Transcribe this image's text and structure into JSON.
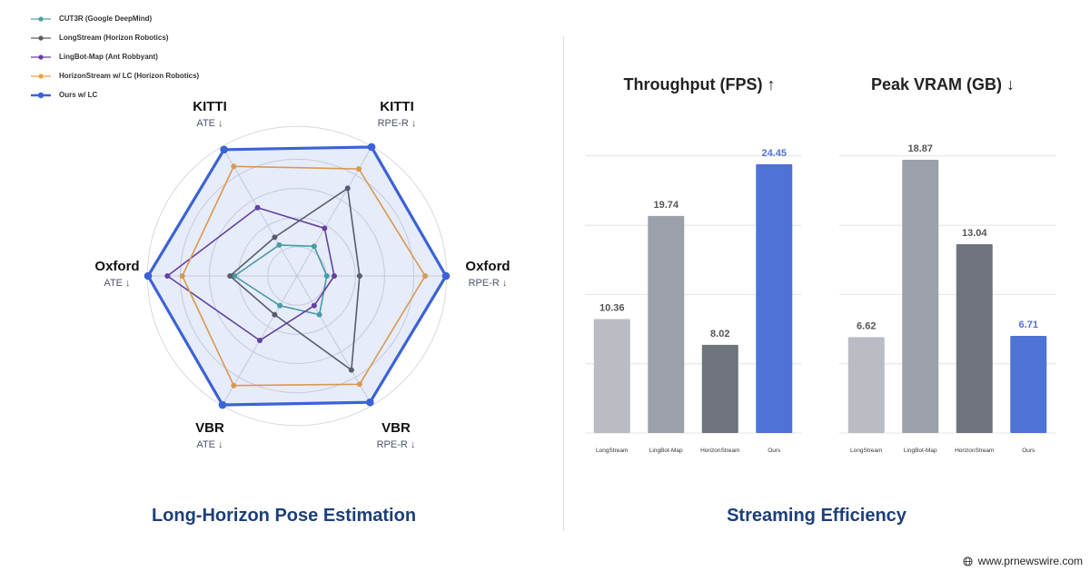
{
  "radar_title": "Long-Horizon Pose Estimation",
  "efficiency_title": "Streaming Efficiency",
  "watermark": "www.prnewswire.com",
  "colors": {
    "title_navy": "#1d3f7a",
    "grid": "#d9d9d9",
    "fill": "#e3e5f3",
    "bar_light": "#b9bcc3",
    "bar_mid": "#9ca0a8",
    "bar_dark": "#6f747c",
    "bar_ours": "#4f72d6"
  },
  "chart_data": [
    {
      "type": "radar",
      "axes": [
        {
          "name": "KITTI",
          "metric": "RPE-R ↓"
        },
        {
          "name": "Oxford",
          "metric": "RPE-R ↓"
        },
        {
          "name": "VBR",
          "metric": "RPE-R ↓"
        },
        {
          "name": "VBR",
          "metric": "ATE ↓"
        },
        {
          "name": "Oxford",
          "metric": "ATE ↓"
        },
        {
          "name": "KITTI",
          "metric": "ATE ↓"
        }
      ],
      "scale_note_levels": 5,
      "series": [
        {
          "name": "CUT3R (Google DeepMind)",
          "color": "#4aa3a0",
          "values": [
            0.23,
            0.2,
            0.3,
            0.23,
            0.42,
            0.24
          ]
        },
        {
          "name": "LongStream (Horizon Robotics)",
          "color": "#5a5d63",
          "values": [
            0.68,
            0.42,
            0.73,
            0.3,
            0.45,
            0.3
          ]
        },
        {
          "name": "LingBot-Map (Ant Robbyant)",
          "color": "#6a3d9a",
          "values": [
            0.37,
            0.25,
            0.23,
            0.5,
            0.87,
            0.53
          ]
        },
        {
          "name": "HorizonStream w/ LC (Horizon Robotics)",
          "color": "#f0a040",
          "values": [
            0.83,
            0.86,
            0.84,
            0.85,
            0.77,
            0.85
          ]
        },
        {
          "name": "Ours w/ LC",
          "color": "#3b63d6",
          "values": [
            1.0,
            1.0,
            0.98,
            1.0,
            1.0,
            0.98
          ],
          "fill": true
        }
      ]
    },
    {
      "type": "bar",
      "title": "Throughput (FPS) ↑",
      "categories": [
        "LongStream",
        "LingBot-Map",
        "HorizonStream",
        "Ours"
      ],
      "values": [
        10.36,
        19.74,
        8.02,
        24.45
      ],
      "ylim": [
        0,
        27
      ],
      "grid": true
    },
    {
      "type": "bar",
      "title": "Peak VRAM (GB) ↓",
      "categories": [
        "LongStream",
        "LingBot-Map",
        "HorizonStream",
        "Ours"
      ],
      "values": [
        6.62,
        18.87,
        13.04,
        6.71
      ],
      "ylim": [
        0,
        20.5
      ],
      "grid": true
    }
  ]
}
